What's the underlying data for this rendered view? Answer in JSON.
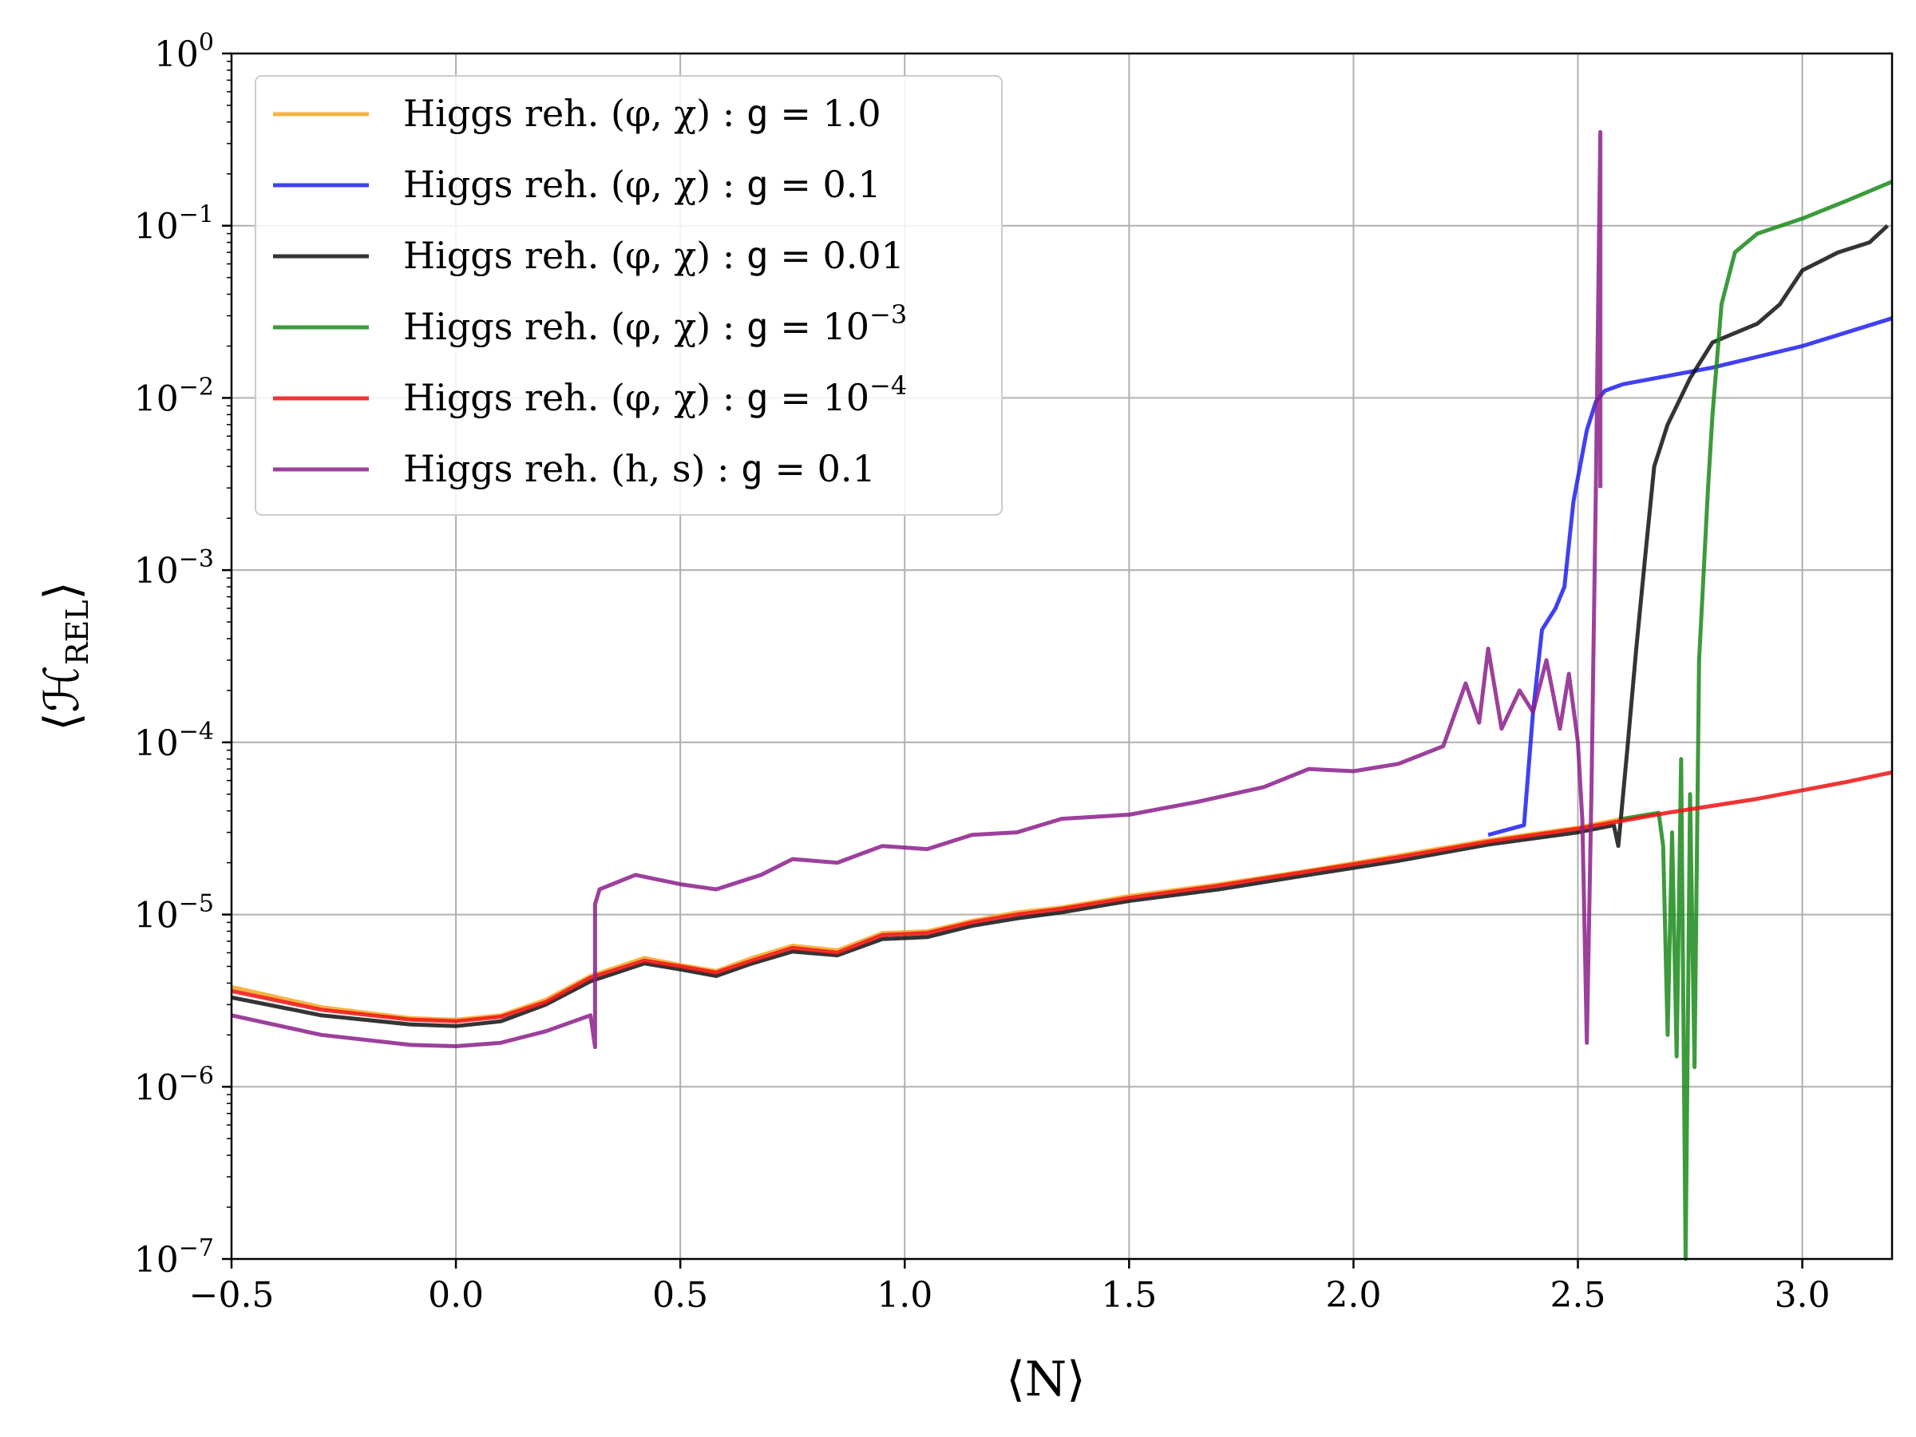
{
  "chart_data": {
    "type": "line",
    "xlabel": "⟨N⟩",
    "ylabel": "⟨ℋ_REL⟩",
    "ylabel_main": "⟨ℋ",
    "ylabel_sub": "REL",
    "ylabel_close": "⟩",
    "xlim": [
      -0.5,
      3.2
    ],
    "ylim": [
      1e-07,
      1
    ],
    "yscale": "log",
    "grid": true,
    "legend_position": "upper-left",
    "x_ticks": [
      -0.5,
      0.0,
      0.5,
      1.0,
      1.5,
      2.0,
      2.5,
      3.0
    ],
    "x_tick_labels": [
      "−0.5",
      "0.0",
      "0.5",
      "1.0",
      "1.5",
      "2.0",
      "2.5",
      "3.0"
    ],
    "y_ticks": [
      1e-07,
      1e-06,
      1e-05,
      0.0001,
      0.001,
      0.01,
      0.1,
      1
    ],
    "y_tick_labels": [
      {
        "base": "10",
        "exp": "−7"
      },
      {
        "base": "10",
        "exp": "−6"
      },
      {
        "base": "10",
        "exp": "−5"
      },
      {
        "base": "10",
        "exp": "−4"
      },
      {
        "base": "10",
        "exp": "−3"
      },
      {
        "base": "10",
        "exp": "−2"
      },
      {
        "base": "10",
        "exp": "−1"
      },
      {
        "base": "10",
        "exp": "0"
      }
    ],
    "series": [
      {
        "name_prefix": "Higgs reh. (φ, χ) : ",
        "name_g": "g",
        "name_value": " = 1.0",
        "name_exp": "",
        "color": "#f5a623",
        "points": [
          [
            -0.5,
            3.8e-06
          ],
          [
            -0.3,
            2.9e-06
          ],
          [
            -0.1,
            2.5e-06
          ],
          [
            0.0,
            2.45e-06
          ],
          [
            0.1,
            2.6e-06
          ],
          [
            0.2,
            3.2e-06
          ],
          [
            0.3,
            4.4e-06
          ],
          [
            0.42,
            5.6e-06
          ],
          [
            0.5,
            5.1e-06
          ],
          [
            0.58,
            4.7e-06
          ],
          [
            0.66,
            5.6e-06
          ],
          [
            0.75,
            6.6e-06
          ],
          [
            0.85,
            6.2e-06
          ],
          [
            0.95,
            7.8e-06
          ],
          [
            1.05,
            8e-06
          ],
          [
            1.15,
            9.2e-06
          ],
          [
            1.25,
            1.03e-05
          ],
          [
            1.35,
            1.1e-05
          ],
          [
            1.5,
            1.28e-05
          ],
          [
            1.7,
            1.5e-05
          ],
          [
            1.9,
            1.8e-05
          ],
          [
            2.1,
            2.2e-05
          ],
          [
            2.3,
            2.7e-05
          ],
          [
            2.5,
            3.2e-05
          ],
          [
            2.6,
            3.6e-05
          ]
        ]
      },
      {
        "name_prefix": "Higgs reh. (φ, χ) : ",
        "name_g": "g",
        "name_value": " = 0.1",
        "name_exp": "",
        "color": "#1f1ff0",
        "points": [
          [
            2.3,
            2.9e-05
          ],
          [
            2.38,
            3.3e-05
          ],
          [
            2.4,
            0.00015
          ],
          [
            2.42,
            0.00045
          ],
          [
            2.45,
            0.0006
          ],
          [
            2.47,
            0.0008
          ],
          [
            2.49,
            0.0025
          ],
          [
            2.52,
            0.0065
          ],
          [
            2.54,
            0.0095
          ],
          [
            2.56,
            0.011
          ],
          [
            2.6,
            0.012
          ],
          [
            2.8,
            0.015
          ],
          [
            3.0,
            0.02
          ],
          [
            3.2,
            0.029
          ]
        ]
      },
      {
        "name_prefix": "Higgs reh. (φ, χ) : ",
        "name_g": "g",
        "name_value": " = 0.01",
        "name_exp": "",
        "color": "#111111",
        "points": [
          [
            -0.5,
            3.3e-06
          ],
          [
            -0.3,
            2.6e-06
          ],
          [
            -0.1,
            2.3e-06
          ],
          [
            0.0,
            2.25e-06
          ],
          [
            0.1,
            2.4e-06
          ],
          [
            0.2,
            3e-06
          ],
          [
            0.3,
            4.1e-06
          ],
          [
            0.42,
            5.2e-06
          ],
          [
            0.5,
            4.8e-06
          ],
          [
            0.58,
            4.4e-06
          ],
          [
            0.66,
            5.2e-06
          ],
          [
            0.75,
            6.1e-06
          ],
          [
            0.85,
            5.8e-06
          ],
          [
            0.95,
            7.2e-06
          ],
          [
            1.05,
            7.4e-06
          ],
          [
            1.15,
            8.6e-06
          ],
          [
            1.25,
            9.5e-06
          ],
          [
            1.35,
            1.03e-05
          ],
          [
            1.5,
            1.2e-05
          ],
          [
            1.7,
            1.4e-05
          ],
          [
            1.9,
            1.7e-05
          ],
          [
            2.1,
            2.05e-05
          ],
          [
            2.3,
            2.55e-05
          ],
          [
            2.5,
            3e-05
          ],
          [
            2.58,
            3.3e-05
          ],
          [
            2.59,
            2.5e-05
          ],
          [
            2.61,
            9e-05
          ],
          [
            2.63,
            0.00035
          ],
          [
            2.65,
            0.0012
          ],
          [
            2.67,
            0.004
          ],
          [
            2.7,
            0.007
          ],
          [
            2.75,
            0.013
          ],
          [
            2.8,
            0.021
          ],
          [
            2.9,
            0.027
          ],
          [
            2.95,
            0.035
          ],
          [
            3.0,
            0.055
          ],
          [
            3.08,
            0.07
          ],
          [
            3.15,
            0.08
          ],
          [
            3.19,
            0.1
          ]
        ]
      },
      {
        "name_prefix": "Higgs reh. (φ, χ) : ",
        "name_g": "g",
        "name_value": " = 10",
        "name_exp": "−3",
        "color": "#1a8a1a",
        "points": [
          [
            2.6,
            3.6e-05
          ],
          [
            2.68,
            3.9e-05
          ],
          [
            2.69,
            2.5e-05
          ],
          [
            2.7,
            2e-06
          ],
          [
            2.71,
            3e-05
          ],
          [
            2.72,
            1.5e-06
          ],
          [
            2.73,
            8e-05
          ],
          [
            2.74,
            1e-07
          ],
          [
            2.75,
            5e-05
          ],
          [
            2.76,
            1.3e-06
          ],
          [
            2.77,
            0.0003
          ],
          [
            2.79,
            0.003
          ],
          [
            2.8,
            0.008
          ],
          [
            2.82,
            0.035
          ],
          [
            2.85,
            0.07
          ],
          [
            2.9,
            0.09
          ],
          [
            3.0,
            0.11
          ],
          [
            3.1,
            0.14
          ],
          [
            3.2,
            0.18
          ]
        ]
      },
      {
        "name_prefix": "Higgs reh. (φ, χ) : ",
        "name_g": "g",
        "name_value": " = 10",
        "name_exp": "−4",
        "color": "#ee1111",
        "points": [
          [
            -0.5,
            3.6e-06
          ],
          [
            -0.3,
            2.8e-06
          ],
          [
            -0.1,
            2.45e-06
          ],
          [
            0.0,
            2.4e-06
          ],
          [
            0.1,
            2.55e-06
          ],
          [
            0.2,
            3.1e-06
          ],
          [
            0.3,
            4.3e-06
          ],
          [
            0.42,
            5.4e-06
          ],
          [
            0.5,
            5e-06
          ],
          [
            0.58,
            4.6e-06
          ],
          [
            0.66,
            5.4e-06
          ],
          [
            0.75,
            6.4e-06
          ],
          [
            0.85,
            6e-06
          ],
          [
            0.95,
            7.6e-06
          ],
          [
            1.05,
            7.8e-06
          ],
          [
            1.15,
            9e-06
          ],
          [
            1.25,
            1e-05
          ],
          [
            1.35,
            1.08e-05
          ],
          [
            1.5,
            1.25e-05
          ],
          [
            1.7,
            1.47e-05
          ],
          [
            1.9,
            1.78e-05
          ],
          [
            2.1,
            2.15e-05
          ],
          [
            2.3,
            2.65e-05
          ],
          [
            2.5,
            3.15e-05
          ],
          [
            2.7,
            3.9e-05
          ],
          [
            2.9,
            4.7e-05
          ],
          [
            3.1,
            5.9e-05
          ],
          [
            3.2,
            6.7e-05
          ]
        ]
      },
      {
        "name_prefix": "Higgs reh. (h, s) : ",
        "name_g": "g",
        "name_value": " = 0.1",
        "name_exp": "",
        "color": "#8b1f8b",
        "points": [
          [
            -0.5,
            2.6e-06
          ],
          [
            -0.3,
            2e-06
          ],
          [
            -0.1,
            1.75e-06
          ],
          [
            0.0,
            1.72e-06
          ],
          [
            0.1,
            1.8e-06
          ],
          [
            0.2,
            2.1e-06
          ],
          [
            0.3,
            2.6e-06
          ],
          [
            0.31,
            1.7e-06
          ],
          [
            0.31,
            1.15e-05
          ],
          [
            0.32,
            1.4e-05
          ],
          [
            0.4,
            1.7e-05
          ],
          [
            0.5,
            1.5e-05
          ],
          [
            0.58,
            1.4e-05
          ],
          [
            0.68,
            1.7e-05
          ],
          [
            0.75,
            2.1e-05
          ],
          [
            0.85,
            2e-05
          ],
          [
            0.95,
            2.5e-05
          ],
          [
            1.05,
            2.4e-05
          ],
          [
            1.15,
            2.9e-05
          ],
          [
            1.25,
            3e-05
          ],
          [
            1.35,
            3.6e-05
          ],
          [
            1.5,
            3.8e-05
          ],
          [
            1.65,
            4.5e-05
          ],
          [
            1.8,
            5.5e-05
          ],
          [
            1.9,
            7e-05
          ],
          [
            2.0,
            6.8e-05
          ],
          [
            2.1,
            7.5e-05
          ],
          [
            2.2,
            9.5e-05
          ],
          [
            2.25,
            0.00022
          ],
          [
            2.28,
            0.00013
          ],
          [
            2.3,
            0.00035
          ],
          [
            2.33,
            0.00012
          ],
          [
            2.37,
            0.0002
          ],
          [
            2.4,
            0.00015
          ],
          [
            2.43,
            0.0003
          ],
          [
            2.46,
            0.00012
          ],
          [
            2.48,
            0.00025
          ],
          [
            2.5,
            0.0001
          ],
          [
            2.51,
            3.5e-05
          ],
          [
            2.52,
            1.8e-06
          ],
          [
            2.53,
            5e-05
          ],
          [
            2.54,
            0.003
          ],
          [
            2.55,
            0.35
          ],
          [
            2.55,
            0.003
          ]
        ]
      }
    ]
  }
}
